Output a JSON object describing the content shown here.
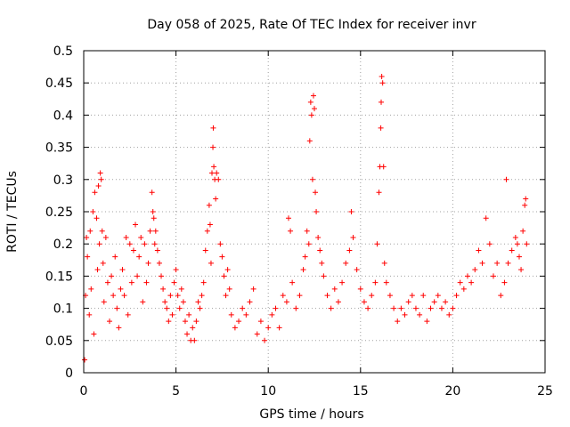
{
  "chart_data": {
    "type": "scatter",
    "title": "Day 058 of 2025, Rate Of TEC Index for receiver invr",
    "xlabel": "GPS time / hours",
    "ylabel": "ROTI / TECUs",
    "xlim": [
      0,
      25
    ],
    "ylim": [
      0,
      0.5
    ],
    "x_ticks": [
      0,
      5,
      10,
      15,
      20,
      25
    ],
    "y_ticks": [
      0,
      0.05,
      0.1,
      0.15,
      0.2,
      0.25,
      0.3,
      0.35,
      0.4,
      0.45,
      0.5
    ],
    "x_tick_labels": [
      "0",
      "5",
      "10",
      "15",
      "20",
      "25"
    ],
    "y_tick_labels": [
      "0",
      "0.05",
      "0.1",
      "0.15",
      "0.2",
      "0.25",
      "0.3",
      "0.35",
      "0.4",
      "0.45",
      "0.5"
    ],
    "grid": true,
    "marker": "+",
    "color": "#ff0000",
    "series": [
      {
        "name": "ROTI",
        "points": [
          [
            0.05,
            0.02
          ],
          [
            0.1,
            0.12
          ],
          [
            0.15,
            0.21
          ],
          [
            0.2,
            0.18
          ],
          [
            0.3,
            0.09
          ],
          [
            0.35,
            0.22
          ],
          [
            0.4,
            0.13
          ],
          [
            0.5,
            0.25
          ],
          [
            0.55,
            0.06
          ],
          [
            0.6,
            0.28
          ],
          [
            0.7,
            0.24
          ],
          [
            0.75,
            0.16
          ],
          [
            0.8,
            0.29
          ],
          [
            0.85,
            0.2
          ],
          [
            0.9,
            0.31
          ],
          [
            0.95,
            0.3
          ],
          [
            1.0,
            0.22
          ],
          [
            1.05,
            0.17
          ],
          [
            1.1,
            0.11
          ],
          [
            1.2,
            0.21
          ],
          [
            1.3,
            0.14
          ],
          [
            1.4,
            0.08
          ],
          [
            1.5,
            0.15
          ],
          [
            1.6,
            0.12
          ],
          [
            1.7,
            0.18
          ],
          [
            1.8,
            0.1
          ],
          [
            1.9,
            0.07
          ],
          [
            2.0,
            0.13
          ],
          [
            2.1,
            0.16
          ],
          [
            2.2,
            0.12
          ],
          [
            2.3,
            0.21
          ],
          [
            2.4,
            0.09
          ],
          [
            2.5,
            0.2
          ],
          [
            2.6,
            0.14
          ],
          [
            2.7,
            0.19
          ],
          [
            2.8,
            0.23
          ],
          [
            2.9,
            0.15
          ],
          [
            3.0,
            0.18
          ],
          [
            3.1,
            0.21
          ],
          [
            3.2,
            0.11
          ],
          [
            3.3,
            0.2
          ],
          [
            3.4,
            0.14
          ],
          [
            3.5,
            0.17
          ],
          [
            3.6,
            0.22
          ],
          [
            3.7,
            0.28
          ],
          [
            3.75,
            0.25
          ],
          [
            3.8,
            0.24
          ],
          [
            3.85,
            0.2
          ],
          [
            3.9,
            0.22
          ],
          [
            4.0,
            0.19
          ],
          [
            4.1,
            0.17
          ],
          [
            4.2,
            0.15
          ],
          [
            4.3,
            0.13
          ],
          [
            4.4,
            0.11
          ],
          [
            4.5,
            0.1
          ],
          [
            4.6,
            0.08
          ],
          [
            4.7,
            0.12
          ],
          [
            4.8,
            0.09
          ],
          [
            4.9,
            0.14
          ],
          [
            5.0,
            0.16
          ],
          [
            5.1,
            0.12
          ],
          [
            5.2,
            0.1
          ],
          [
            5.3,
            0.13
          ],
          [
            5.4,
            0.11
          ],
          [
            5.5,
            0.08
          ],
          [
            5.6,
            0.06
          ],
          [
            5.7,
            0.09
          ],
          [
            5.8,
            0.05
          ],
          [
            5.9,
            0.07
          ],
          [
            6.0,
            0.05
          ],
          [
            6.1,
            0.08
          ],
          [
            6.2,
            0.11
          ],
          [
            6.3,
            0.1
          ],
          [
            6.4,
            0.12
          ],
          [
            6.5,
            0.14
          ],
          [
            6.6,
            0.19
          ],
          [
            6.7,
            0.22
          ],
          [
            6.8,
            0.26
          ],
          [
            6.85,
            0.23
          ],
          [
            6.9,
            0.17
          ],
          [
            6.95,
            0.31
          ],
          [
            7.0,
            0.35
          ],
          [
            7.02,
            0.38
          ],
          [
            7.05,
            0.32
          ],
          [
            7.1,
            0.3
          ],
          [
            7.15,
            0.27
          ],
          [
            7.2,
            0.31
          ],
          [
            7.3,
            0.3
          ],
          [
            7.4,
            0.2
          ],
          [
            7.5,
            0.18
          ],
          [
            7.6,
            0.15
          ],
          [
            7.7,
            0.12
          ],
          [
            7.8,
            0.16
          ],
          [
            7.9,
            0.13
          ],
          [
            8.0,
            0.09
          ],
          [
            8.2,
            0.07
          ],
          [
            8.4,
            0.08
          ],
          [
            8.6,
            0.1
          ],
          [
            8.8,
            0.09
          ],
          [
            9.0,
            0.11
          ],
          [
            9.2,
            0.13
          ],
          [
            9.4,
            0.06
          ],
          [
            9.6,
            0.08
          ],
          [
            9.8,
            0.05
          ],
          [
            10.0,
            0.07
          ],
          [
            10.2,
            0.09
          ],
          [
            10.4,
            0.1
          ],
          [
            10.6,
            0.07
          ],
          [
            10.8,
            0.12
          ],
          [
            11.0,
            0.11
          ],
          [
            11.1,
            0.24
          ],
          [
            11.2,
            0.22
          ],
          [
            11.3,
            0.14
          ],
          [
            11.5,
            0.1
          ],
          [
            11.7,
            0.12
          ],
          [
            11.9,
            0.16
          ],
          [
            12.0,
            0.18
          ],
          [
            12.1,
            0.22
          ],
          [
            12.2,
            0.2
          ],
          [
            12.25,
            0.36
          ],
          [
            12.3,
            0.42
          ],
          [
            12.35,
            0.4
          ],
          [
            12.4,
            0.3
          ],
          [
            12.45,
            0.43
          ],
          [
            12.5,
            0.41
          ],
          [
            12.55,
            0.28
          ],
          [
            12.6,
            0.25
          ],
          [
            12.7,
            0.21
          ],
          [
            12.8,
            0.19
          ],
          [
            12.9,
            0.17
          ],
          [
            13.0,
            0.15
          ],
          [
            13.2,
            0.12
          ],
          [
            13.4,
            0.1
          ],
          [
            13.6,
            0.13
          ],
          [
            13.8,
            0.11
          ],
          [
            14.0,
            0.14
          ],
          [
            14.2,
            0.17
          ],
          [
            14.4,
            0.19
          ],
          [
            14.5,
            0.25
          ],
          [
            14.6,
            0.21
          ],
          [
            14.8,
            0.16
          ],
          [
            15.0,
            0.13
          ],
          [
            15.2,
            0.11
          ],
          [
            15.4,
            0.1
          ],
          [
            15.6,
            0.12
          ],
          [
            15.8,
            0.14
          ],
          [
            15.9,
            0.2
          ],
          [
            16.0,
            0.28
          ],
          [
            16.05,
            0.32
          ],
          [
            16.1,
            0.38
          ],
          [
            16.12,
            0.42
          ],
          [
            16.15,
            0.46
          ],
          [
            16.2,
            0.45
          ],
          [
            16.25,
            0.32
          ],
          [
            16.3,
            0.17
          ],
          [
            16.4,
            0.14
          ],
          [
            16.6,
            0.12
          ],
          [
            16.8,
            0.1
          ],
          [
            17.0,
            0.08
          ],
          [
            17.2,
            0.1
          ],
          [
            17.4,
            0.09
          ],
          [
            17.6,
            0.11
          ],
          [
            17.8,
            0.12
          ],
          [
            18.0,
            0.1
          ],
          [
            18.2,
            0.09
          ],
          [
            18.4,
            0.12
          ],
          [
            18.6,
            0.08
          ],
          [
            18.8,
            0.1
          ],
          [
            19.0,
            0.11
          ],
          [
            19.2,
            0.12
          ],
          [
            19.4,
            0.1
          ],
          [
            19.6,
            0.11
          ],
          [
            19.8,
            0.09
          ],
          [
            20.0,
            0.1
          ],
          [
            20.2,
            0.12
          ],
          [
            20.4,
            0.14
          ],
          [
            20.6,
            0.13
          ],
          [
            20.8,
            0.15
          ],
          [
            21.0,
            0.14
          ],
          [
            21.2,
            0.16
          ],
          [
            21.4,
            0.19
          ],
          [
            21.6,
            0.17
          ],
          [
            21.8,
            0.24
          ],
          [
            22.0,
            0.2
          ],
          [
            22.2,
            0.15
          ],
          [
            22.4,
            0.17
          ],
          [
            22.6,
            0.12
          ],
          [
            22.8,
            0.14
          ],
          [
            22.9,
            0.3
          ],
          [
            23.0,
            0.17
          ],
          [
            23.2,
            0.19
          ],
          [
            23.4,
            0.21
          ],
          [
            23.5,
            0.2
          ],
          [
            23.6,
            0.18
          ],
          [
            23.7,
            0.16
          ],
          [
            23.8,
            0.22
          ],
          [
            23.9,
            0.26
          ],
          [
            23.95,
            0.27
          ],
          [
            24.0,
            0.2
          ]
        ]
      }
    ]
  }
}
